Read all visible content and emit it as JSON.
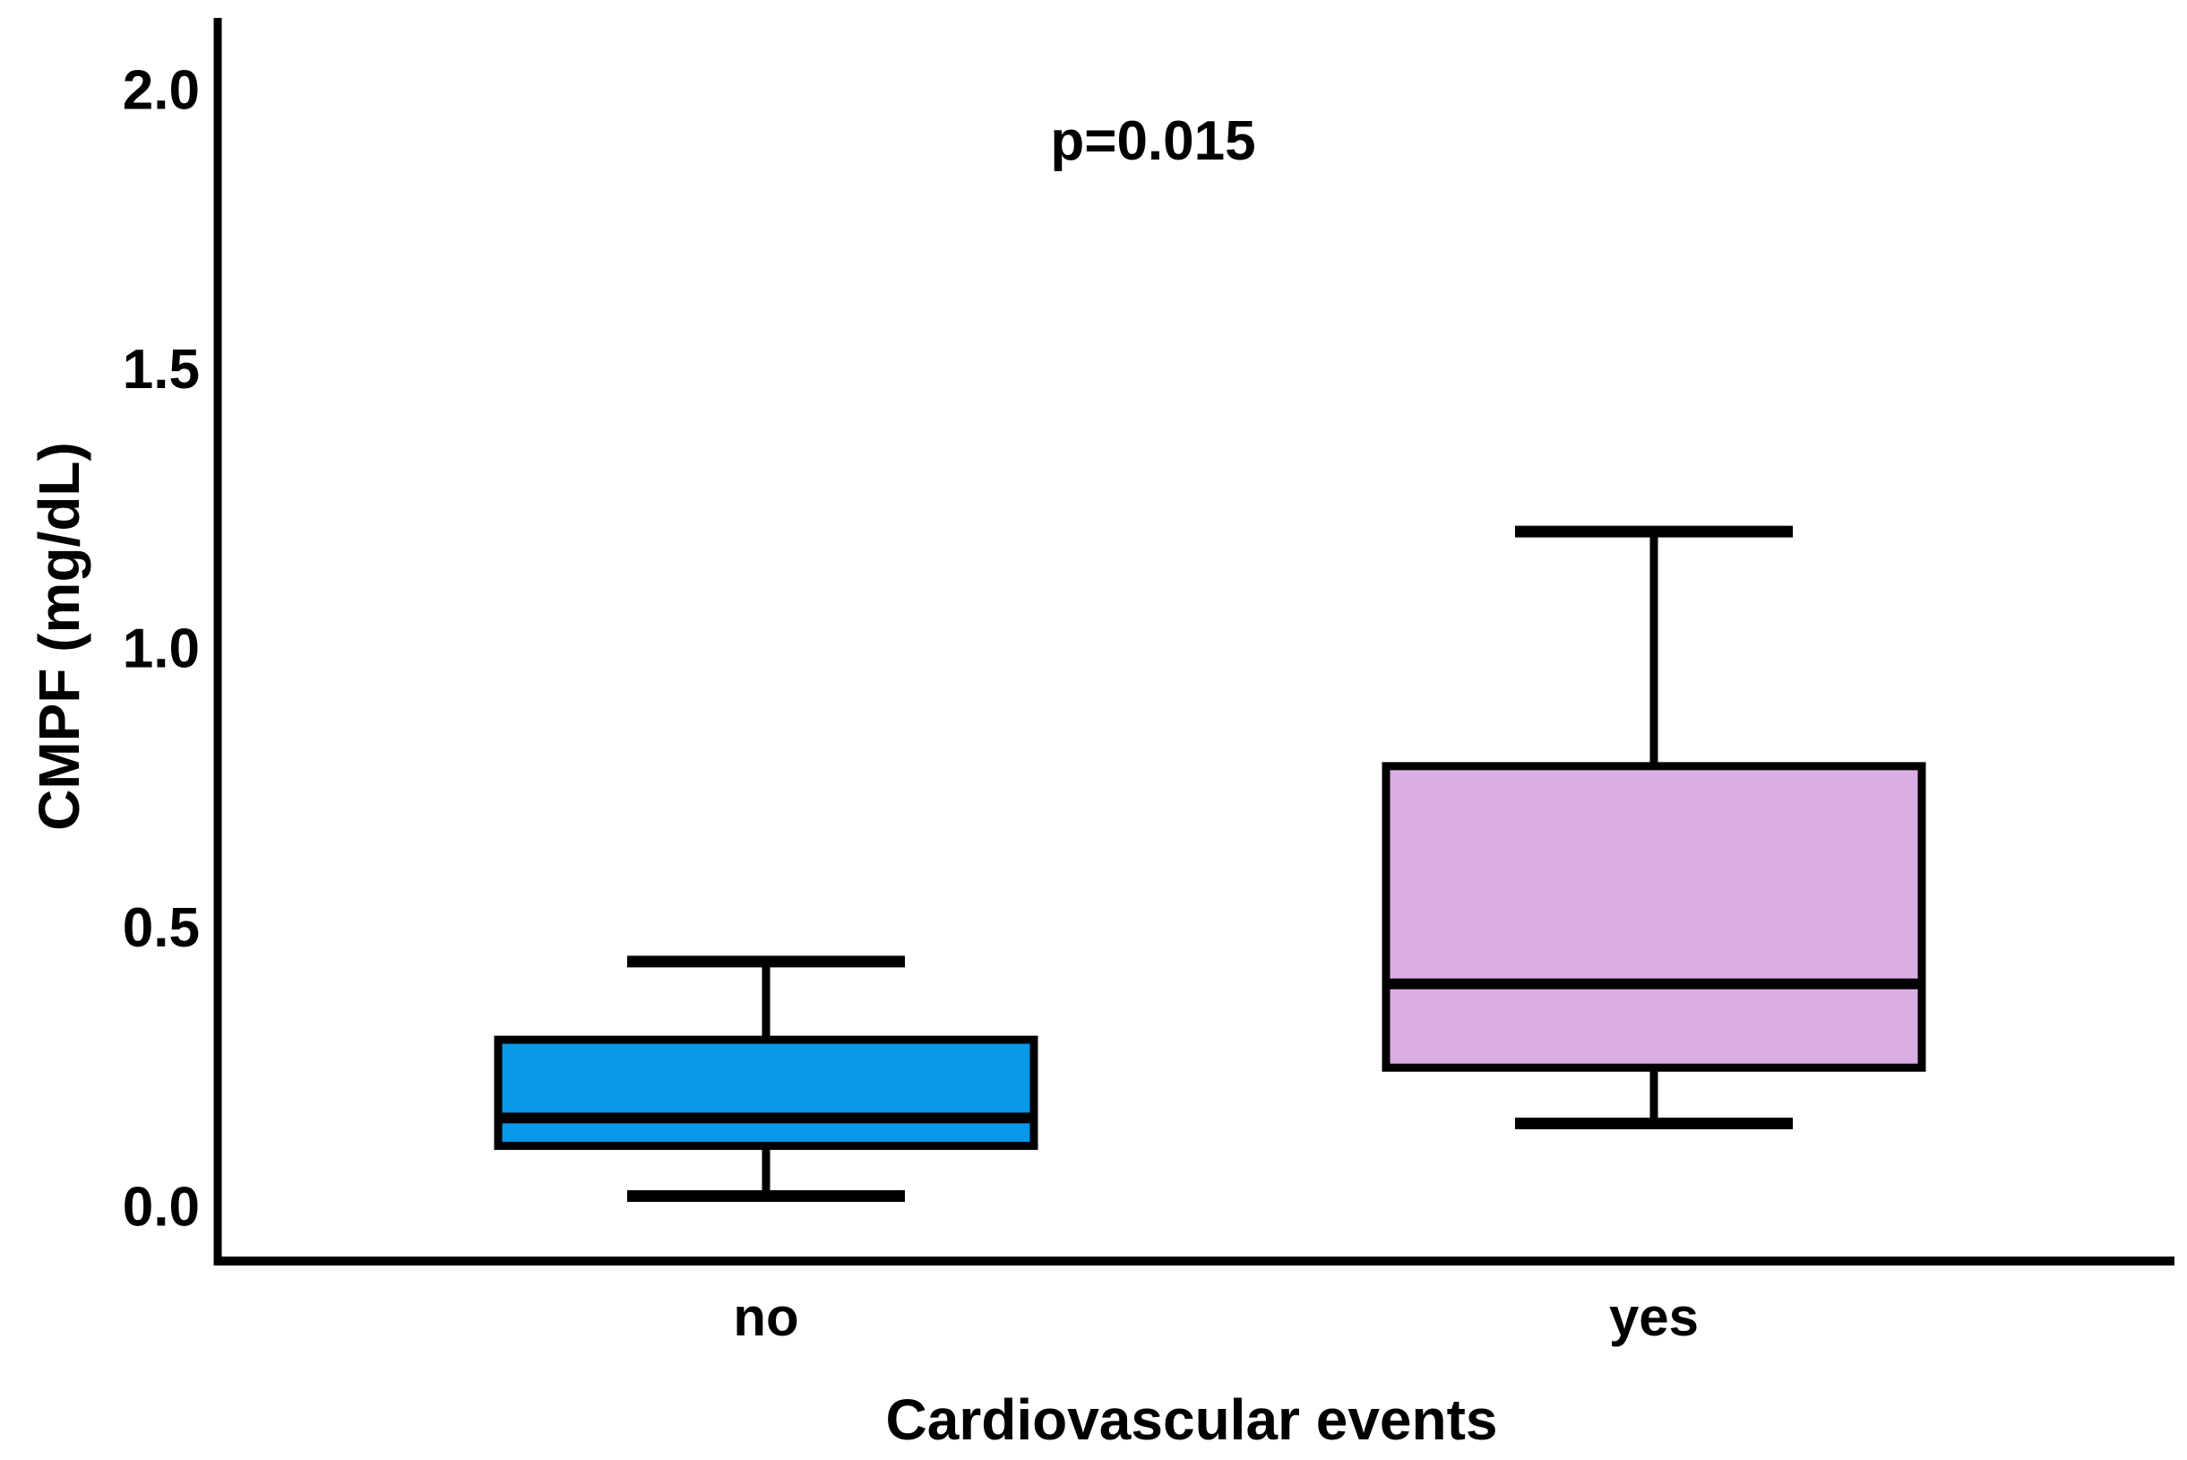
{
  "annotation": {
    "p_value_label": "p=0.015"
  },
  "y_axis": {
    "title": "CMPF (mg/dL)",
    "tick_labels": [
      "2.0",
      "1.5",
      "1.0",
      "0.5",
      "0.0"
    ]
  },
  "x_axis": {
    "title": "Cardiovascular events",
    "category_labels": [
      "no",
      "yes"
    ]
  },
  "colors": {
    "no_box_fill": "#0898E8",
    "yes_box_fill": "#DAAEE3",
    "stroke": "#000000",
    "background": "#FFFFFF"
  },
  "chart_data": {
    "type": "boxplot",
    "title": "",
    "xlabel": "Cardiovascular events",
    "ylabel": "CMPF (mg/dL)",
    "ylim": [
      0.0,
      2.0
    ],
    "yticks": [
      2.0,
      1.5,
      1.0,
      0.5,
      0.0
    ],
    "grid": false,
    "legend": "none",
    "annotations": [
      {
        "text": "p=0.015",
        "position": "top-center"
      }
    ],
    "groups": [
      {
        "category": "no",
        "min": 0.02,
        "q1": 0.11,
        "median": 0.16,
        "q3": 0.3,
        "max": 0.44,
        "fill": "#0898E8"
      },
      {
        "category": "yes",
        "min": 0.15,
        "q1": 0.25,
        "median": 0.4,
        "q3": 0.79,
        "max": 1.21,
        "fill": "#DAAEE3"
      }
    ]
  }
}
